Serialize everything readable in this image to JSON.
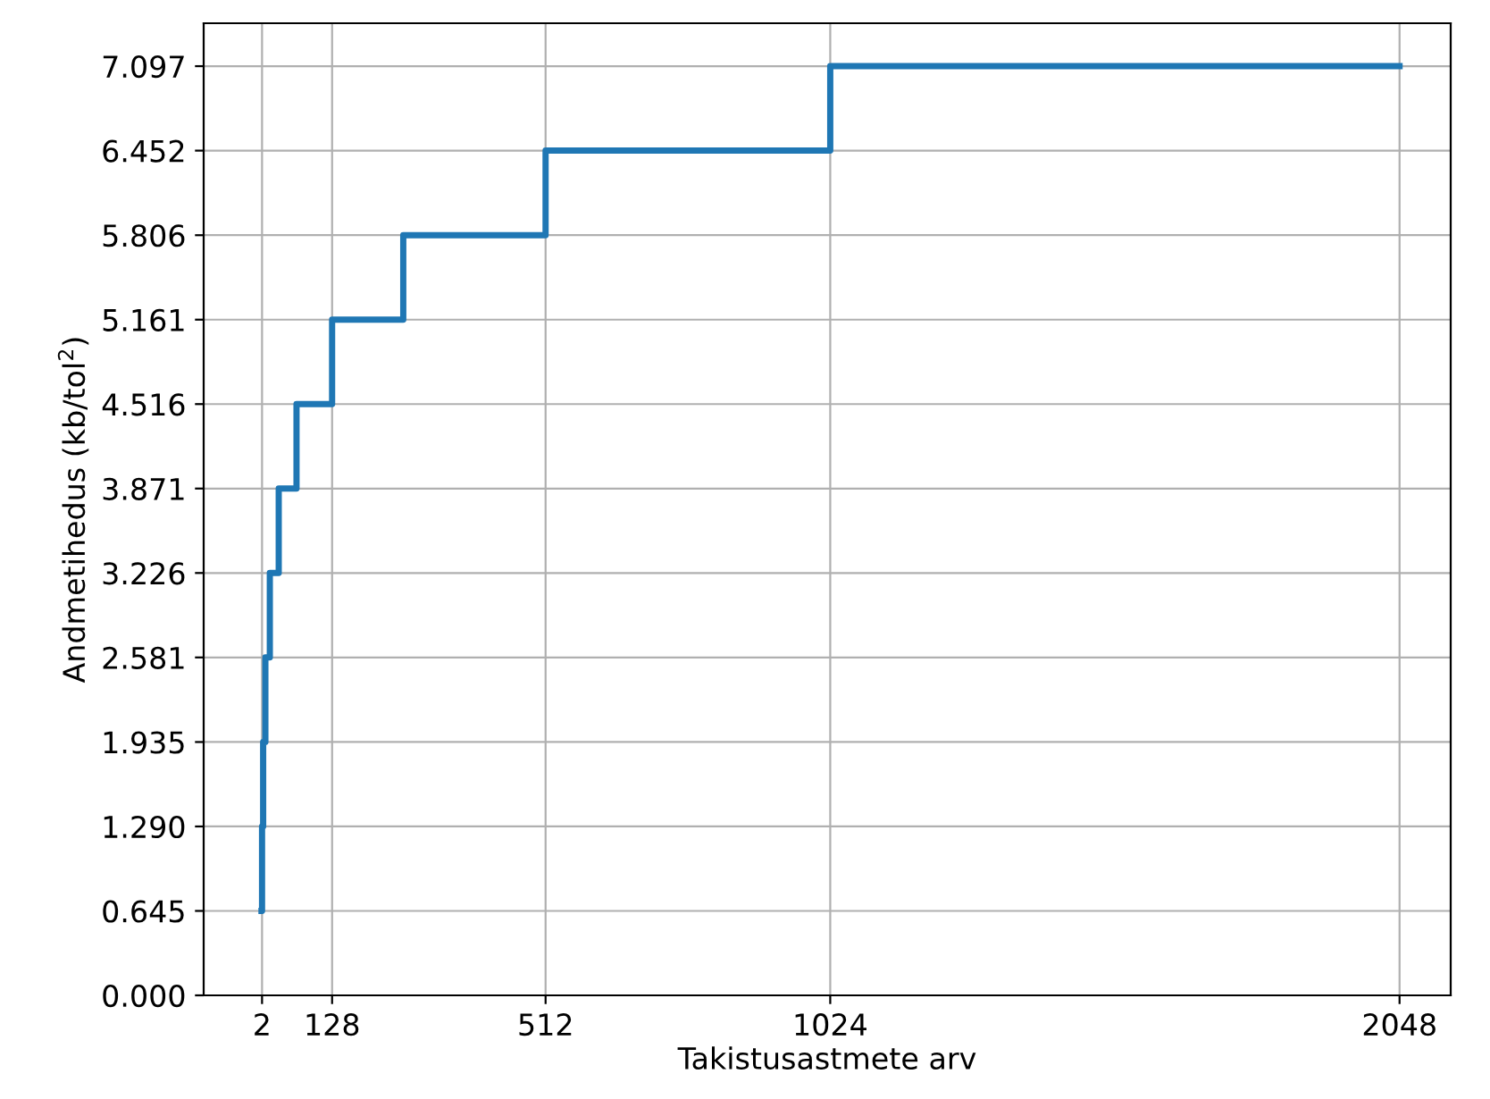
{
  "chart_data": {
    "type": "step",
    "xlabel": "Takistusastmete arv",
    "ylabel": "Andmetihedus (kb/tol$^{2}$)",
    "x": [
      1,
      2,
      4,
      8,
      16,
      32,
      64,
      128,
      256,
      512,
      1024,
      2048
    ],
    "series": [
      {
        "color": "#1f77b4",
        "values": [
          0.645,
          1.29,
          1.935,
          2.581,
          3.226,
          3.871,
          4.516,
          5.161,
          5.806,
          6.452,
          7.097,
          7.097
        ]
      }
    ],
    "xlim": [
      -103,
      2140
    ],
    "ylim": [
      0,
      7.425
    ],
    "xticks": [
      2,
      128,
      512,
      1024,
      2048
    ],
    "yticks": [
      {
        "value": 0,
        "label": "0.000"
      },
      0.645,
      {
        "value": 1.29,
        "label": "1.290"
      },
      1.935,
      2.581,
      3.226,
      3.871,
      4.516,
      5.161,
      5.806,
      6.452,
      7.097
    ],
    "grid": true,
    "line_style": "solid",
    "marker": "none"
  }
}
